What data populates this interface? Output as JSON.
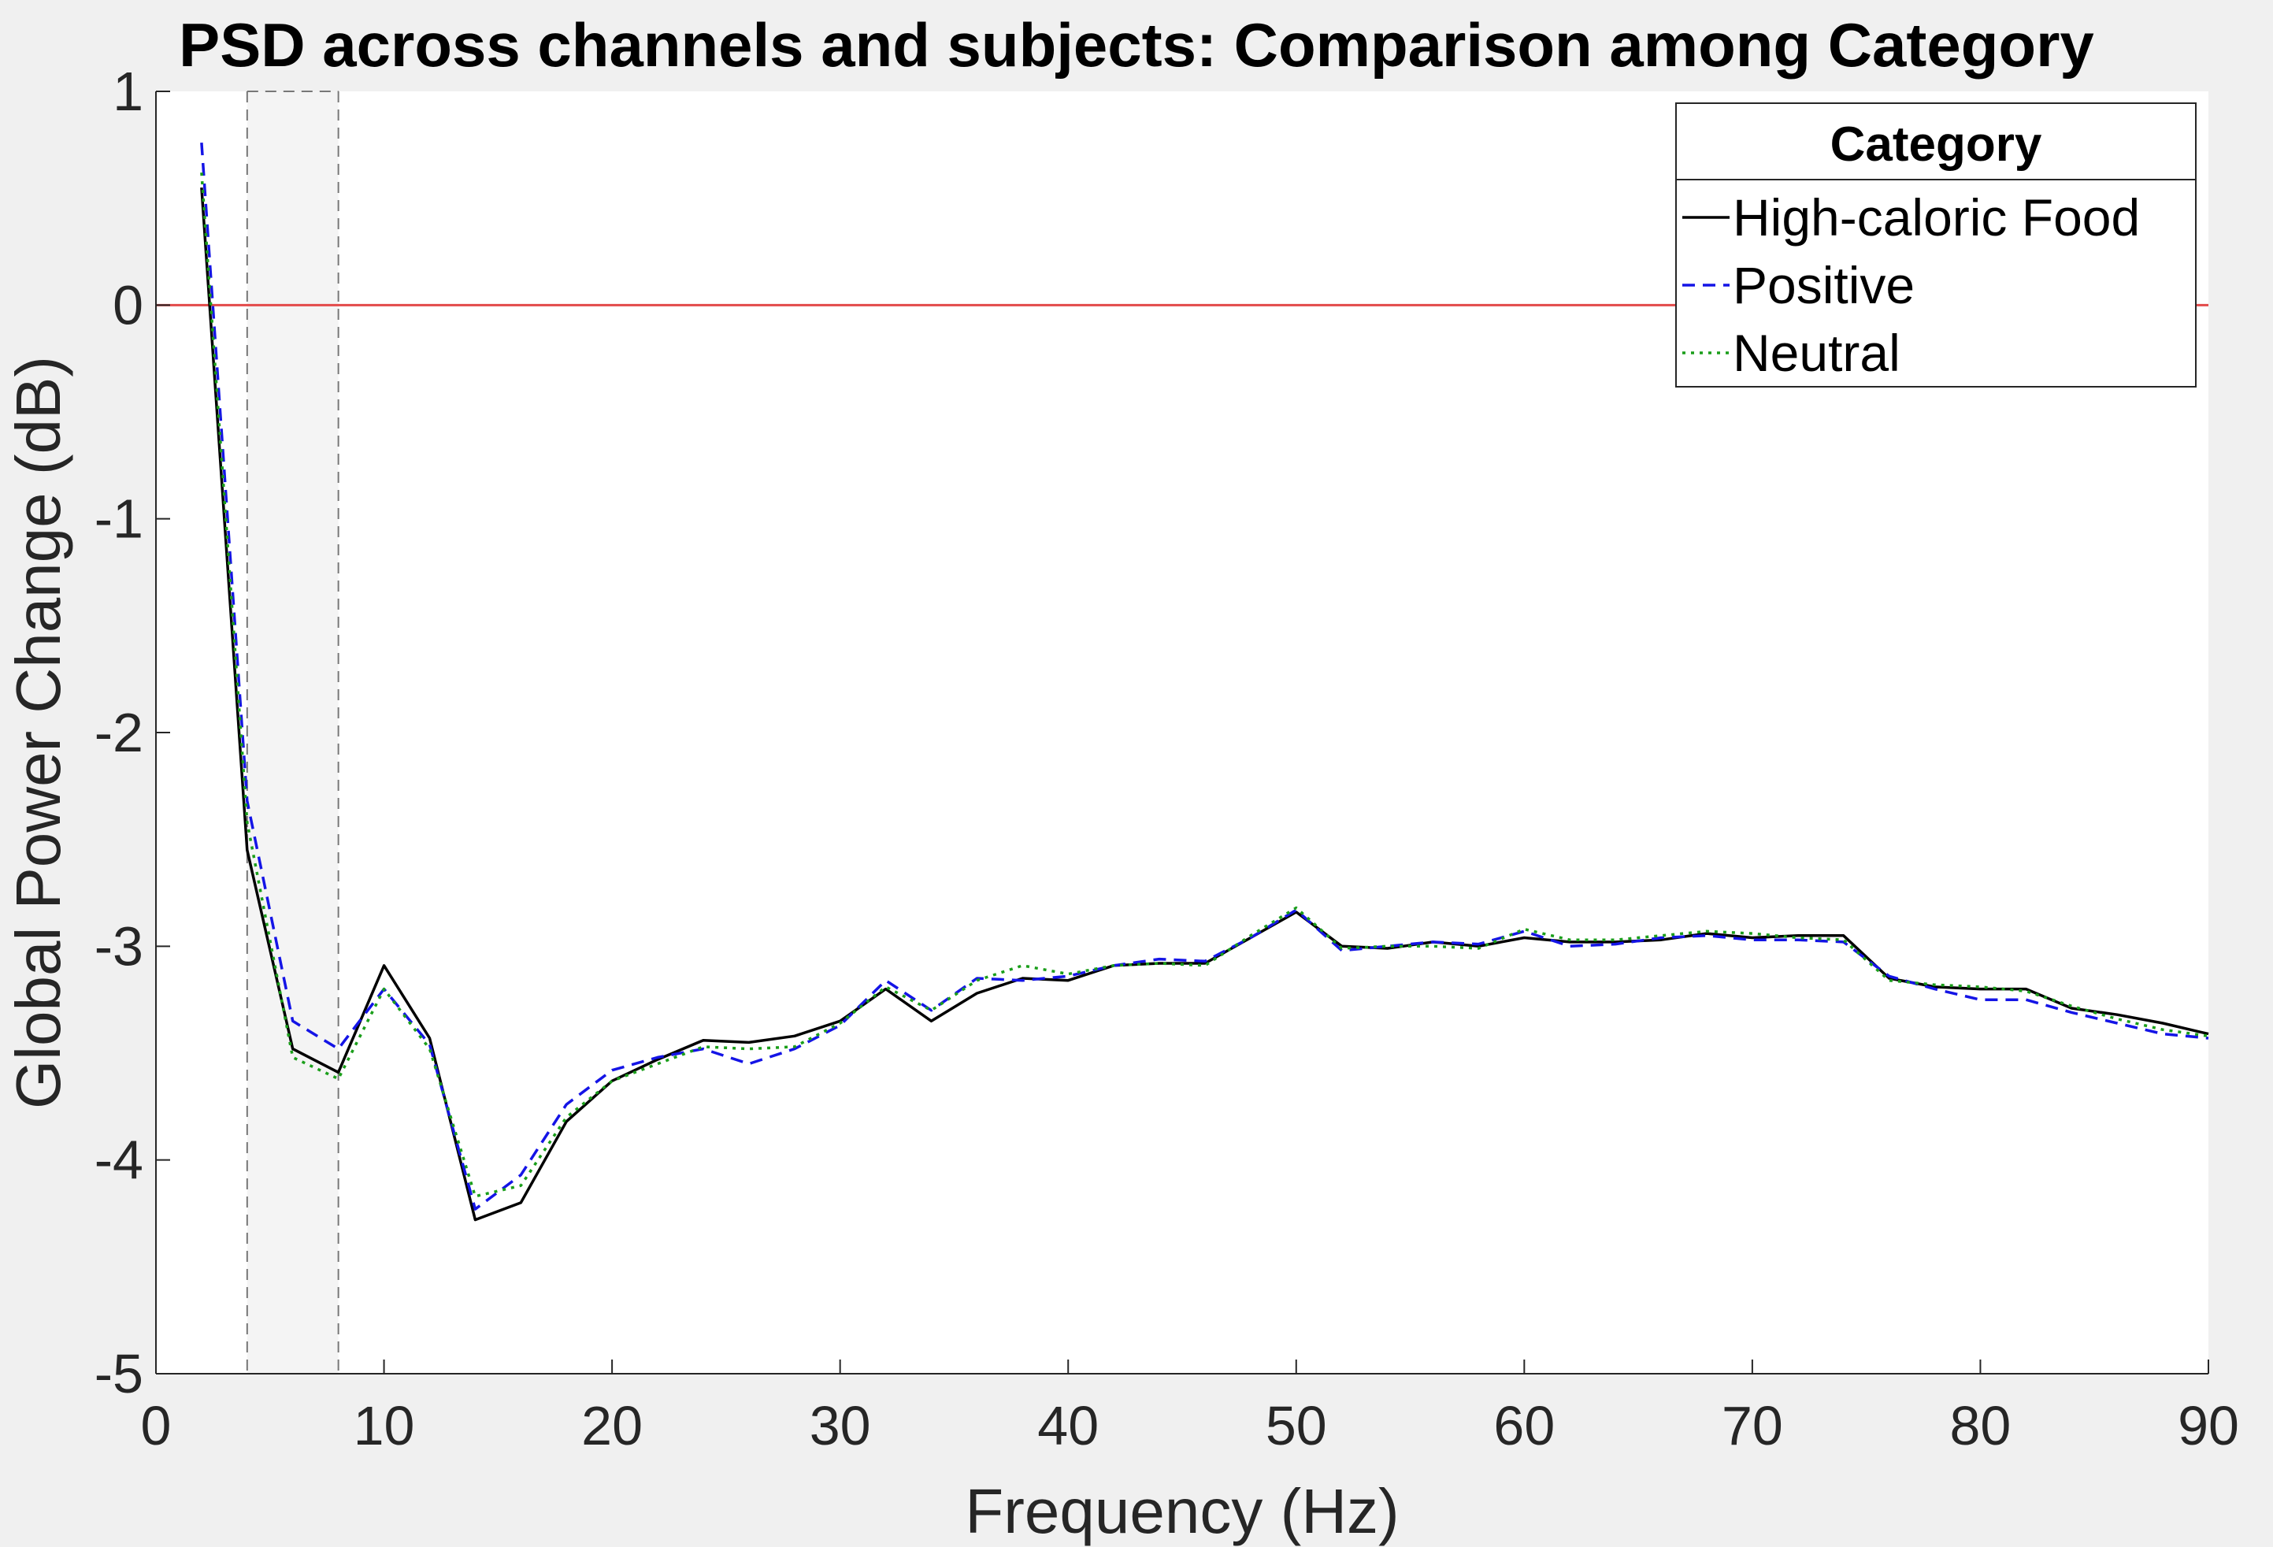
{
  "chart_data": {
    "type": "line",
    "title": "PSD across channels and subjects: Comparison among Category",
    "xlabel": "Frequency (Hz)",
    "ylabel": "Global Power Change (dB)",
    "xlim": [
      0,
      90
    ],
    "ylim": [
      -5,
      1
    ],
    "xticks": [
      0,
      10,
      20,
      30,
      40,
      50,
      60,
      70,
      80,
      90
    ],
    "yticks": [
      -5,
      -4,
      -3,
      -2,
      -1,
      0,
      1
    ],
    "grid": false,
    "legend": {
      "title": "Category",
      "position": "top-right"
    },
    "shaded_band": {
      "x_start": 4,
      "x_end": 8
    },
    "reference_line": {
      "y": 0,
      "color": "#e34a4a"
    },
    "series": [
      {
        "name": "High-caloric Food",
        "color": "#000000",
        "style": "solid",
        "x": [
          2,
          4,
          6,
          8,
          10,
          12,
          14,
          16,
          18,
          20,
          22,
          24,
          26,
          28,
          30,
          32,
          34,
          36,
          38,
          40,
          42,
          44,
          46,
          48,
          50,
          52,
          54,
          56,
          58,
          60,
          62,
          64,
          66,
          68,
          70,
          72,
          74,
          76,
          78,
          80,
          82,
          84,
          86,
          88,
          90
        ],
        "y": [
          0.55,
          -2.55,
          -3.48,
          -3.59,
          -3.09,
          -3.43,
          -4.28,
          -4.2,
          -3.82,
          -3.63,
          -3.53,
          -3.44,
          -3.45,
          -3.42,
          -3.35,
          -3.2,
          -3.35,
          -3.22,
          -3.15,
          -3.16,
          -3.09,
          -3.08,
          -3.08,
          -2.96,
          -2.84,
          -3.0,
          -3.01,
          -2.98,
          -3.0,
          -2.96,
          -2.98,
          -2.98,
          -2.97,
          -2.94,
          -2.96,
          -2.95,
          -2.95,
          -3.15,
          -3.19,
          -3.2,
          -3.2,
          -3.29,
          -3.32,
          -3.36,
          -3.41
        ]
      },
      {
        "name": "Positive",
        "color": "#1414e6",
        "style": "dashed",
        "x": [
          2,
          4,
          6,
          8,
          10,
          12,
          14,
          16,
          18,
          20,
          22,
          24,
          26,
          28,
          30,
          32,
          34,
          36,
          38,
          40,
          42,
          44,
          46,
          48,
          50,
          52,
          54,
          56,
          58,
          60,
          62,
          64,
          66,
          68,
          70,
          72,
          74,
          76,
          78,
          80,
          82,
          84,
          86,
          88,
          90
        ],
        "y": [
          0.76,
          -2.32,
          -3.35,
          -3.48,
          -3.2,
          -3.46,
          -4.23,
          -4.07,
          -3.74,
          -3.58,
          -3.52,
          -3.48,
          -3.55,
          -3.48,
          -3.37,
          -3.16,
          -3.3,
          -3.15,
          -3.16,
          -3.14,
          -3.09,
          -3.06,
          -3.07,
          -2.96,
          -2.83,
          -3.02,
          -3.0,
          -2.98,
          -2.99,
          -2.93,
          -3.0,
          -2.99,
          -2.96,
          -2.95,
          -2.97,
          -2.97,
          -2.98,
          -3.14,
          -3.2,
          -3.25,
          -3.25,
          -3.31,
          -3.36,
          -3.41,
          -3.43
        ]
      },
      {
        "name": "Neutral",
        "color": "#1a9e1a",
        "style": "dotted",
        "x": [
          2,
          4,
          6,
          8,
          10,
          12,
          14,
          16,
          18,
          20,
          22,
          24,
          26,
          28,
          30,
          32,
          34,
          36,
          38,
          40,
          42,
          44,
          46,
          48,
          50,
          52,
          54,
          56,
          58,
          60,
          62,
          64,
          66,
          68,
          70,
          72,
          74,
          76,
          78,
          80,
          82,
          84,
          86,
          88,
          90
        ],
        "y": [
          0.62,
          -2.42,
          -3.52,
          -3.62,
          -3.2,
          -3.48,
          -4.17,
          -4.12,
          -3.8,
          -3.63,
          -3.55,
          -3.47,
          -3.48,
          -3.47,
          -3.36,
          -3.19,
          -3.3,
          -3.16,
          -3.09,
          -3.13,
          -3.09,
          -3.08,
          -3.09,
          -2.95,
          -2.82,
          -3.01,
          -3.0,
          -3.0,
          -3.01,
          -2.92,
          -2.97,
          -2.97,
          -2.95,
          -2.93,
          -2.94,
          -2.96,
          -2.97,
          -3.16,
          -3.18,
          -3.19,
          -3.21,
          -3.28,
          -3.34,
          -3.39,
          -3.42
        ]
      }
    ]
  }
}
